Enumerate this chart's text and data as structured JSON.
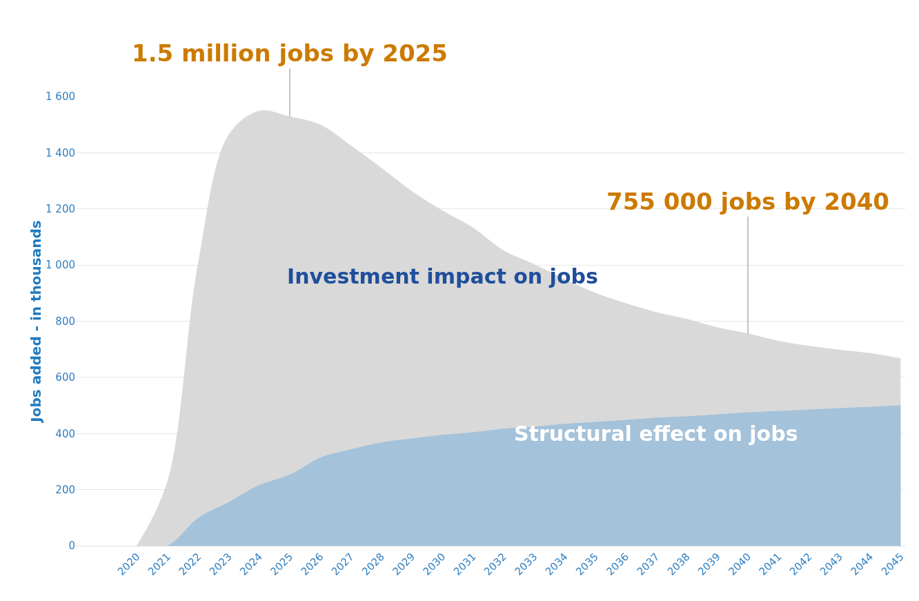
{
  "chart_data": {
    "type": "area",
    "ylabel": "Jobs added - in thousands",
    "categories": [
      "2020",
      "2021",
      "2022",
      "2023",
      "2024",
      "2025",
      "2026",
      "2027",
      "2028",
      "2029",
      "2030",
      "2031",
      "2032",
      "2033",
      "2034",
      "2035",
      "2036",
      "2037",
      "2038",
      "2039",
      "2040",
      "2041",
      "2042",
      "2043",
      "2044",
      "2045"
    ],
    "series": [
      {
        "name": "Investment impact on jobs",
        "color": "#d9d9d9",
        "values": [
          0,
          227,
          1000,
          1462,
          1548,
          1528,
          1499,
          1425,
          1345,
          1262,
          1193,
          1132,
          1051,
          1002,
          949,
          900,
          863,
          831,
          807,
          777,
          755,
          729,
          711,
          697,
          685,
          667
        ]
      },
      {
        "name": "Structural effect on jobs",
        "color": "#a4c2da",
        "values": [
          0,
          0,
          98,
          154,
          215,
          252,
          313,
          342,
          367,
          381,
          394,
          403,
          416,
          423,
          433,
          440,
          447,
          455,
          460,
          467,
          474,
          479,
          484,
          489,
          494,
          499
        ]
      }
    ],
    "ylim": [
      0,
      1600
    ],
    "yticks": [
      0,
      200,
      400,
      600,
      800,
      {
        "value": 1000,
        "label": "1 000"
      },
      {
        "value": 1200,
        "label": "1 200"
      },
      {
        "value": 1400,
        "label": "1 400"
      },
      {
        "value": 1600,
        "label": "1 600"
      }
    ],
    "grid": "y",
    "legend": false,
    "annotations": [
      {
        "text": "1.5 million jobs by 2025",
        "x": "2025",
        "y": 1528
      },
      {
        "text": "755 000 jobs by 2040",
        "x": "2040",
        "y": 755
      }
    ]
  }
}
